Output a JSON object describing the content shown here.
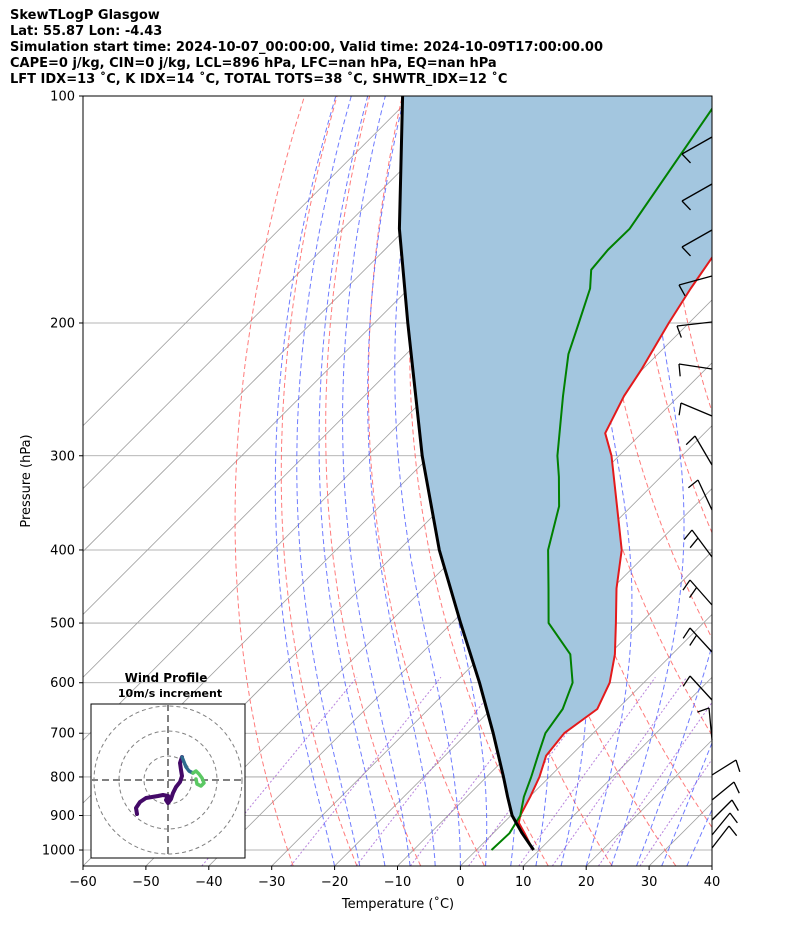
{
  "header": {
    "line1": "SkewTLogP Glasgow",
    "line2": "Lat: 55.87   Lon: -4.43",
    "line3": "Simulation start time: 2024-10-07_00:00:00, Valid time: 2024-10-09T17:00:00.00",
    "line4": "CAPE=0 j/kg, CIN=0 j/kg, LCL=896 hPa, LFC=nan hPa, EQ=nan hPa",
    "line5": "LFT IDX=13 ˚C, K IDX=14 ˚C, TOTAL TOTS=38 ˚C, SHWTR_IDX=12 ˚C"
  },
  "colors": {
    "temperature": "#e31a1c",
    "dewpoint": "#008000",
    "parcel": "#000000",
    "cin_fill": "#a3c6df",
    "dry_adiabat": "#ff5a5a",
    "moist_adiabat": "#4a5aff",
    "mixing_ratio": "#9a4fcf",
    "isotherm": "#9e9e9e"
  },
  "chart_data": [
    {
      "type": "line",
      "title": "",
      "xlabel": "Temperature (˚C)",
      "ylabel": "Pressure (hPa)",
      "xlim": [
        -60,
        40
      ],
      "ylim": [
        1050,
        100
      ],
      "y_scale": "log",
      "grid": true,
      "x_ticks": [
        "−60",
        "−50",
        "−40",
        "−30",
        "−20",
        "−10",
        "0",
        "10",
        "20",
        "30",
        "40"
      ],
      "y_ticks": [
        "100",
        "200",
        "300",
        "400",
        "500",
        "600",
        "700",
        "800",
        "900",
        "1000"
      ],
      "series": [
        {
          "name": "",
          "role": "temperature",
          "pressure": [
            1000,
            950,
            920,
            900,
            850,
            800,
            750,
            700,
            650,
            600,
            550,
            500,
            450,
            400,
            350,
            300,
            280,
            250,
            230,
            200,
            180,
            160,
            150,
            130,
            115,
            100
          ],
          "temp": [
            9,
            5,
            2.4,
            1.5,
            0.1,
            -1.6,
            -3.9,
            -4.6,
            -3.2,
            -5.4,
            -9.1,
            -13.9,
            -19.3,
            -24.6,
            -32.3,
            -41.2,
            -45.8,
            -48.7,
            -50.2,
            -53.2,
            -55.2,
            -57.1,
            -57.9,
            -58.6,
            -59.6,
            -61.2
          ]
        },
        {
          "name": "",
          "role": "dewpoint",
          "pressure": [
            1000,
            950,
            900,
            850,
            800,
            750,
            700,
            650,
            600,
            550,
            500,
            450,
            400,
            350,
            320,
            300,
            250,
            220,
            200,
            180,
            170,
            160,
            150,
            100
          ],
          "temp": [
            2.4,
            2.6,
            1.5,
            -0.9,
            -2.9,
            -5.2,
            -7.6,
            -8.7,
            -11.3,
            -16.2,
            -24.6,
            -30.1,
            -36.3,
            -41.5,
            -46.2,
            -49.8,
            -58.4,
            -64.2,
            -67.5,
            -71.2,
            -74,
            -74.5,
            -74.4,
            -81
          ]
        },
        {
          "name": "",
          "role": "parcel",
          "pressure": [
            1000,
            950,
            900,
            850,
            800,
            700,
            600,
            500,
            400,
            300,
            200,
            150,
            100
          ],
          "temp": [
            9.1,
            4.6,
            0.2,
            -3.5,
            -7.3,
            -15.9,
            -26.1,
            -38.6,
            -53.6,
            -71.3,
            -94.7,
            -111,
            -131.6
          ]
        }
      ],
      "cin_shading": "between parcel and temperature, 1000-100 hPa",
      "wind_barbs": true
    },
    {
      "type": "line",
      "title": "Wind Profile",
      "subtitle": "10m/s increment",
      "description": "hodograph, colored by height"
    }
  ]
}
